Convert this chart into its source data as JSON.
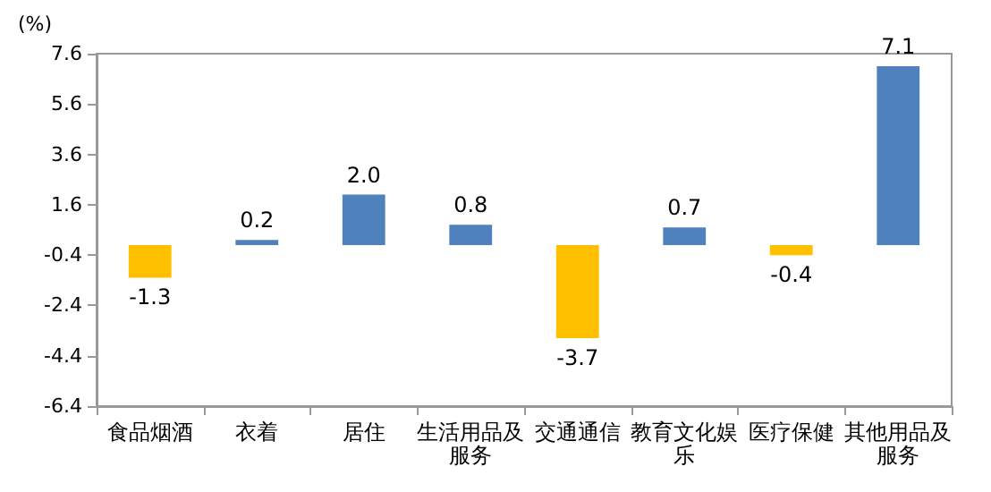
{
  "chart_data": {
    "type": "bar",
    "ylabel": "(%)",
    "categories": [
      "食品烟酒",
      "衣着",
      "居住",
      "生活用品及服务",
      "交通通信",
      "教育文化娱乐",
      "医疗保健",
      "其他用品及服务"
    ],
    "values": [
      -1.3,
      0.2,
      2.0,
      0.8,
      -3.7,
      0.7,
      -0.4,
      7.1
    ],
    "colors": [
      "#ffc000",
      "#4f81bd",
      "#4f81bd",
      "#4f81bd",
      "#ffc000",
      "#4f81bd",
      "#ffc000",
      "#4f81bd"
    ],
    "value_labels": [
      "-1.3",
      "0.2",
      "2.0",
      "0.8",
      "-3.7",
      "0.7",
      "-0.4",
      "7.1"
    ],
    "ylim": [
      -6.4,
      7.6
    ],
    "yticks": [
      -6.4,
      -4.4,
      -2.4,
      -0.4,
      1.6,
      3.6,
      5.6,
      7.6
    ],
    "grid": false
  }
}
